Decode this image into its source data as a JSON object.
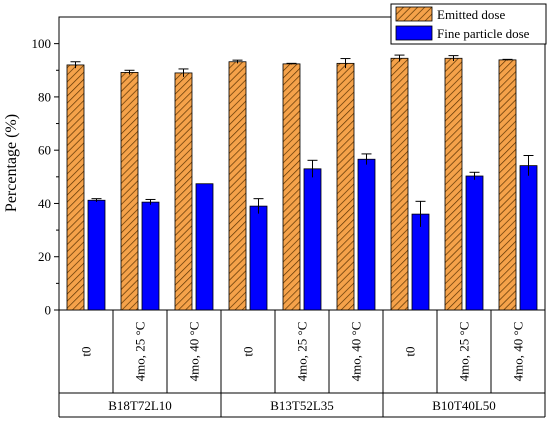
{
  "colors": {
    "emitted": "#f5a24a",
    "emitted_hatch": "#5a3200",
    "fine": "#0000ff",
    "axis": "#000000"
  },
  "chart_data": {
    "type": "bar",
    "ylabel": "Percentage (%)",
    "ylim": [
      0,
      110
    ],
    "yticks": [
      0,
      20,
      40,
      60,
      80,
      100
    ],
    "groups": [
      {
        "label": "B18T72L10",
        "conditions": [
          "t0",
          "4mo, 25 °C",
          "4mo, 40 °C"
        ]
      },
      {
        "label": "B13T52L35",
        "conditions": [
          "t0",
          "4mo, 25 °C",
          "4mo, 40 °C"
        ]
      },
      {
        "label": "B10T40L50",
        "conditions": [
          "t0",
          "4mo, 25 °C",
          "4mo, 40 °C"
        ]
      }
    ],
    "series": [
      {
        "name": "Emitted dose",
        "values": [
          92,
          89.2,
          89,
          93.2,
          92.4,
          92.6,
          94.5,
          94.5,
          93.9
        ],
        "errors": [
          1.2,
          0.8,
          1.5,
          0.6,
          0.2,
          1.8,
          1.2,
          1.0,
          0.2
        ]
      },
      {
        "name": "Fine particle dose",
        "values": [
          41.2,
          40.5,
          47.4,
          39.0,
          53.0,
          56.6,
          36.0,
          50.3,
          54.2
        ],
        "errors": [
          0.6,
          1.0,
          0.0,
          2.8,
          3.2,
          2.0,
          4.8,
          1.4,
          3.8
        ]
      }
    ],
    "legend_position": "top-right",
    "grid": false
  }
}
